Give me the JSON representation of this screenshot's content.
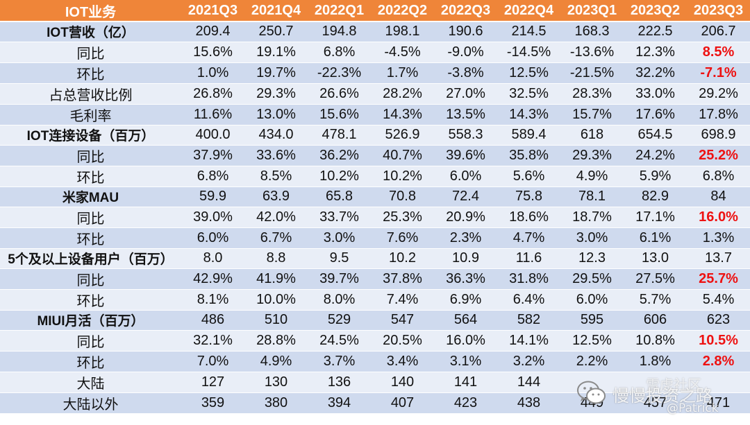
{
  "table": {
    "corner": "IOT业务",
    "quarters": [
      "2021Q3",
      "2021Q4",
      "2022Q1",
      "2022Q2",
      "2022Q3",
      "2022Q4",
      "2023Q1",
      "2023Q2",
      "2023Q3"
    ],
    "rows": [
      {
        "label": "IOT营收（亿）",
        "main": true,
        "values": [
          "209.4",
          "250.7",
          "194.8",
          "198.1",
          "190.6",
          "214.5",
          "168.3",
          "222.5",
          "206.7"
        ],
        "highlight_last": false
      },
      {
        "label": "同比",
        "main": false,
        "values": [
          "15.6%",
          "19.1%",
          "6.8%",
          "-4.5%",
          "-9.0%",
          "-14.5%",
          "-13.6%",
          "12.3%",
          "8.5%"
        ],
        "highlight_last": true
      },
      {
        "label": "环比",
        "main": false,
        "values": [
          "1.0%",
          "19.7%",
          "-22.3%",
          "1.7%",
          "-3.8%",
          "12.5%",
          "-21.5%",
          "32.2%",
          "-7.1%"
        ],
        "highlight_last": true
      },
      {
        "label": "占总营收比例",
        "main": false,
        "values": [
          "26.8%",
          "29.3%",
          "26.6%",
          "28.2%",
          "27.0%",
          "32.5%",
          "28.3%",
          "33.0%",
          "29.2%"
        ],
        "highlight_last": false
      },
      {
        "label": "毛利率",
        "main": false,
        "values": [
          "11.6%",
          "13.0%",
          "15.6%",
          "14.3%",
          "13.5%",
          "14.3%",
          "15.7%",
          "17.6%",
          "17.8%"
        ],
        "highlight_last": false
      },
      {
        "label": "IOT连接设备（百万）",
        "main": true,
        "values": [
          "400.0",
          "434.0",
          "478.1",
          "526.9",
          "558.3",
          "589.4",
          "618",
          "654.5",
          "698.9"
        ],
        "highlight_last": false
      },
      {
        "label": "同比",
        "main": false,
        "values": [
          "37.9%",
          "33.6%",
          "36.2%",
          "40.7%",
          "39.6%",
          "35.8%",
          "29.3%",
          "24.2%",
          "25.2%"
        ],
        "highlight_last": true
      },
      {
        "label": "环比",
        "main": false,
        "values": [
          "6.8%",
          "8.5%",
          "10.2%",
          "10.2%",
          "6.0%",
          "5.6%",
          "4.9%",
          "5.9%",
          "6.8%"
        ],
        "highlight_last": false
      },
      {
        "label": "米家MAU",
        "main": true,
        "values": [
          "59.9",
          "63.9",
          "65.8",
          "70.8",
          "72.4",
          "75.8",
          "78.1",
          "82.9",
          "84"
        ],
        "highlight_last": false
      },
      {
        "label": "同比",
        "main": false,
        "values": [
          "39.0%",
          "42.0%",
          "33.7%",
          "25.3%",
          "20.9%",
          "18.6%",
          "18.7%",
          "17.1%",
          "16.0%"
        ],
        "highlight_last": true
      },
      {
        "label": "环比",
        "main": false,
        "values": [
          "6.0%",
          "6.7%",
          "3.0%",
          "7.6%",
          "2.3%",
          "4.7%",
          "3.0%",
          "6.1%",
          "1.3%"
        ],
        "highlight_last": false
      },
      {
        "label": "5个及以上设备用户（百万）",
        "main": true,
        "values": [
          "8.0",
          "8.8",
          "9.5",
          "10.2",
          "10.9",
          "11.6",
          "12.3",
          "13.0",
          "13.7"
        ],
        "highlight_last": false
      },
      {
        "label": "同比",
        "main": false,
        "values": [
          "42.9%",
          "41.9%",
          "39.7%",
          "37.8%",
          "36.3%",
          "31.8%",
          "29.5%",
          "27.5%",
          "25.7%"
        ],
        "highlight_last": true
      },
      {
        "label": "环比",
        "main": false,
        "values": [
          "8.1%",
          "10.0%",
          "8.0%",
          "7.4%",
          "6.9%",
          "6.4%",
          "6.0%",
          "5.7%",
          "5.4%"
        ],
        "highlight_last": false
      },
      {
        "label": "MIUI月活（百万）",
        "main": true,
        "values": [
          "486",
          "510",
          "529",
          "547",
          "564",
          "582",
          "595",
          "606",
          "623"
        ],
        "highlight_last": false
      },
      {
        "label": "同比",
        "main": false,
        "values": [
          "32.1%",
          "28.8%",
          "24.5%",
          "20.5%",
          "16.0%",
          "14.1%",
          "12.5%",
          "10.8%",
          "10.5%"
        ],
        "highlight_last": true
      },
      {
        "label": "环比",
        "main": false,
        "values": [
          "7.0%",
          "4.9%",
          "3.7%",
          "3.4%",
          "3.1%",
          "3.2%",
          "2.2%",
          "1.8%",
          "2.8%"
        ],
        "highlight_last": true
      },
      {
        "label": "大陆",
        "main": false,
        "values": [
          "127",
          "130",
          "136",
          "140",
          "141",
          "144",
          "",
          "",
          ""
        ],
        "highlight_last": false
      },
      {
        "label": "大陆以外",
        "main": false,
        "values": [
          "359",
          "380",
          "394",
          "407",
          "423",
          "438",
          "449",
          "457",
          "471"
        ],
        "highlight_last": false
      }
    ]
  },
  "watermark": {
    "icon": "wechat-icon",
    "text_main": "慢慢投资之路",
    "text_top": "雪虎社区",
    "text_bottom": "@Patrick"
  }
}
